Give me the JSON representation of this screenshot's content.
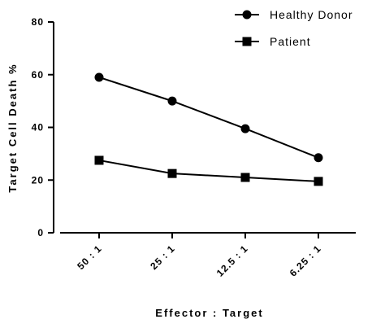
{
  "chart_data": {
    "type": "line",
    "categories": [
      "50 : 1",
      "25 : 1",
      "12.5 : 1",
      "6.25 : 1"
    ],
    "series": [
      {
        "name": "Healthy Donor",
        "marker": "circle",
        "values": [
          59,
          50,
          39.5,
          28.5
        ]
      },
      {
        "name": "Patient",
        "marker": "square",
        "values": [
          27.5,
          22.5,
          21,
          19.5
        ]
      }
    ],
    "xlabel": "Effector : Target",
    "ylabel": "Target Cell Death %",
    "ylim": [
      0,
      80
    ],
    "yticks": [
      0,
      20,
      40,
      60,
      80
    ],
    "grid": false,
    "legend_position": "top-right",
    "color": "#000000"
  }
}
